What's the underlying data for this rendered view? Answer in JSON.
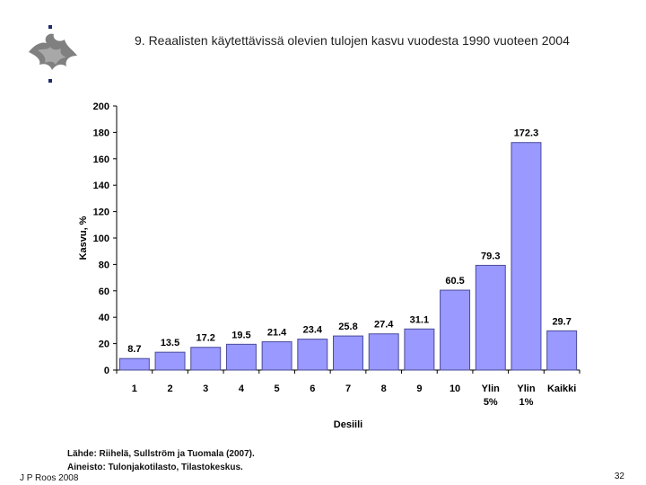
{
  "slide": {
    "title": "9. Reaalisten käytettävissä olevien tulojen kasvu vuodesta 1990 vuoteen 2004",
    "source_line1": "Lähde: Riihelä, Sullström ja Tuomala (2007).",
    "source_line2": "Aineisto: Tulonjakotilasto, Tilastokeskus.",
    "author": "J P Roos 2008",
    "page_number": "32",
    "logo_icon": "university-of-helsinki-flame-logo"
  },
  "colors": {
    "bar_fill": "#9999ff",
    "bar_stroke": "#4a4a9a",
    "logo_navy": "#1f2a6b",
    "logo_gray": "#808080"
  },
  "chart_data": {
    "type": "bar",
    "categories": [
      "1",
      "2",
      "3",
      "4",
      "5",
      "6",
      "7",
      "8",
      "9",
      "10",
      "Ylin 5%",
      "Ylin 1%",
      "Kaikki"
    ],
    "category_lines": [
      [
        "1"
      ],
      [
        "2"
      ],
      [
        "3"
      ],
      [
        "4"
      ],
      [
        "5"
      ],
      [
        "6"
      ],
      [
        "7"
      ],
      [
        "8"
      ],
      [
        "9"
      ],
      [
        "10"
      ],
      [
        "Ylin",
        "5%"
      ],
      [
        "Ylin",
        "1%"
      ],
      [
        "Kaikki"
      ]
    ],
    "values": [
      8.7,
      13.5,
      17.2,
      19.5,
      21.4,
      23.4,
      25.8,
      27.4,
      31.1,
      60.5,
      79.3,
      172.3,
      29.7
    ],
    "value_labels": [
      "8.7",
      "13.5",
      "17.2",
      "19.5",
      "21.4",
      "23.4",
      "25.8",
      "27.4",
      "31.1",
      "60.5",
      "79.3",
      "172.3",
      "29.7"
    ],
    "title": "",
    "xlabel": "Desiili",
    "ylabel": "Kasvu, %",
    "ylim": [
      0,
      200
    ],
    "yticks": [
      0,
      20,
      40,
      60,
      80,
      100,
      120,
      140,
      160,
      180,
      200
    ],
    "grid": false,
    "legend": "none"
  }
}
